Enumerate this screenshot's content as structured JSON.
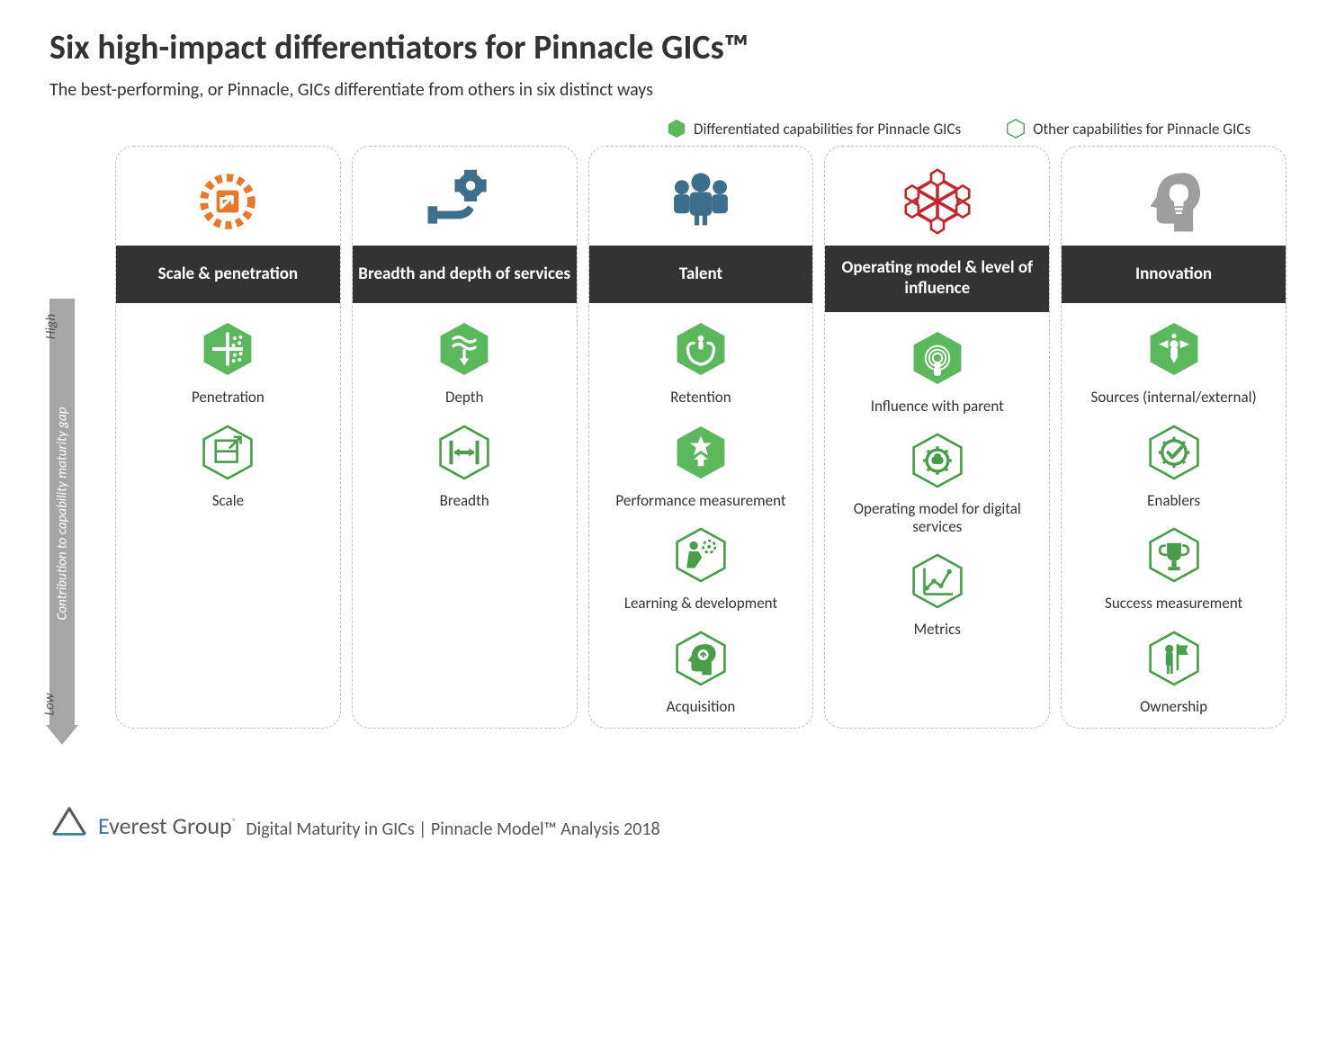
{
  "title": "Six high-impact differentiators for Pinnacle GICs™",
  "subtitle": "The best-performing, or Pinnacle, GICs differentiate from others in six distinct ways",
  "legend": {
    "diff": "Differentiated capabilities for Pinnacle GICs",
    "other": "Other capabilities for Pinnacle GICs"
  },
  "axis": {
    "label": "Contribution to capability maturity gap",
    "high": "High",
    "low": "Low"
  },
  "colors": {
    "filled_hex": "#5cb85c",
    "outline_hex": "#4a9e4a",
    "header_bg": "#333333",
    "axis_bg": "#a6a6a6",
    "icon_orange": "#e8792b",
    "icon_blue": "#3d6e8c",
    "icon_red": "#c1272d",
    "icon_grey": "#9e9e9e"
  },
  "columns": [
    {
      "header": "Scale & penetration",
      "icon": "gear-box",
      "icon_color": "#e8792b",
      "items": [
        {
          "label": "Penetration",
          "filled": true,
          "glyph": "penetration"
        },
        {
          "label": "Scale",
          "filled": false,
          "glyph": "scale"
        }
      ]
    },
    {
      "header": "Breadth and depth of services",
      "icon": "hand-gear",
      "icon_color": "#3d6e8c",
      "items": [
        {
          "label": "Depth",
          "filled": true,
          "glyph": "depth"
        },
        {
          "label": "Breadth",
          "filled": false,
          "glyph": "breadth"
        }
      ]
    },
    {
      "header": "Talent",
      "icon": "people",
      "icon_color": "#3d6e8c",
      "items": [
        {
          "label": "Retention",
          "filled": true,
          "glyph": "retention"
        },
        {
          "label": "Performance measurement",
          "filled": true,
          "glyph": "star-up"
        },
        {
          "label": "Learning & development",
          "filled": false,
          "glyph": "learn"
        },
        {
          "label": "Acquisition",
          "filled": false,
          "glyph": "head-up"
        }
      ]
    },
    {
      "header": "Operating model & level of influence",
      "icon": "network",
      "icon_color": "#c1272d",
      "items": [
        {
          "label": "Influence with parent",
          "filled": true,
          "glyph": "influence"
        },
        {
          "label": "Operating model for digital services",
          "filled": false,
          "glyph": "gear-brain"
        },
        {
          "label": "Metrics",
          "filled": false,
          "glyph": "metrics"
        }
      ]
    },
    {
      "header": "Innovation",
      "icon": "head-bulb",
      "icon_color": "#9e9e9e",
      "items": [
        {
          "label": "Sources (internal/external)",
          "filled": true,
          "glyph": "sources"
        },
        {
          "label": "Enablers",
          "filled": false,
          "glyph": "check-gear"
        },
        {
          "label": "Success measurement",
          "filled": false,
          "glyph": "trophy"
        },
        {
          "label": "Ownership",
          "filled": false,
          "glyph": "flag-person"
        }
      ]
    }
  ],
  "footer": {
    "brand": "Everest Group",
    "tag": "Digital Maturity in GICs | Pinnacle Model™ Analysis 2018"
  }
}
